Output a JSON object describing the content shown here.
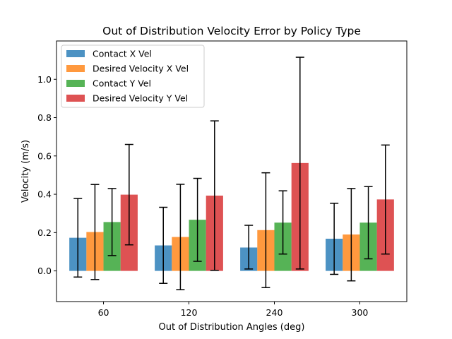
{
  "chart_data": {
    "type": "bar",
    "title": "Out of Distribution Velocity Error by Policy Type",
    "xlabel": "Out of Distribution Angles (deg)",
    "ylabel": "Velocity (m/s)",
    "categories": [
      "60",
      "120",
      "240",
      "300"
    ],
    "ylim": [
      -0.16,
      1.2
    ],
    "yticks": [
      0.0,
      0.2,
      0.4,
      0.6,
      0.8,
      1.0
    ],
    "ytick_labels": [
      "0.0",
      "0.2",
      "0.4",
      "0.6",
      "0.8",
      "1.0"
    ],
    "legend_position": "top-left",
    "grid": false,
    "series": [
      {
        "name": "Contact X Vel",
        "color": "#1f77b4",
        "values": [
          0.173,
          0.133,
          0.122,
          0.168
        ],
        "error_low": [
          -0.032,
          -0.065,
          0.01,
          -0.018
        ],
        "error_high": [
          0.378,
          0.332,
          0.238,
          0.353
        ]
      },
      {
        "name": "Desired Velocity X Vel",
        "color": "#ff7f0e",
        "values": [
          0.203,
          0.177,
          0.213,
          0.19
        ],
        "error_low": [
          -0.045,
          -0.098,
          -0.087,
          -0.052
        ],
        "error_high": [
          0.451,
          0.452,
          0.512,
          0.43
        ]
      },
      {
        "name": "Contact Y Vel",
        "color": "#2ca02c",
        "values": [
          0.255,
          0.267,
          0.252,
          0.252
        ],
        "error_low": [
          0.08,
          0.05,
          0.088,
          0.063
        ],
        "error_high": [
          0.43,
          0.483,
          0.418,
          0.44
        ]
      },
      {
        "name": "Desired Velocity Y Vel",
        "color": "#d62728",
        "values": [
          0.398,
          0.393,
          0.563,
          0.373
        ],
        "error_low": [
          0.136,
          0.003,
          0.01,
          0.088
        ],
        "error_high": [
          0.66,
          0.783,
          1.115,
          0.657
        ]
      }
    ]
  }
}
